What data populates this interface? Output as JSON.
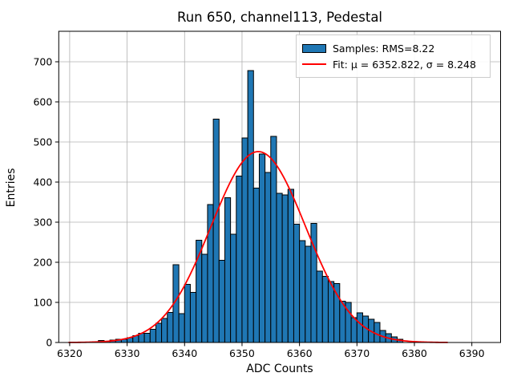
{
  "figure": {
    "title": "Run 650, channel113, Pedestal"
  },
  "chart_data": {
    "type": "bar",
    "subtype": "histogram-with-gaussian-fit",
    "title": "Run 650, channel113, Pedestal",
    "xlabel": "ADC Counts",
    "ylabel": "Entries",
    "xlim": [
      6318.1,
      6395.0
    ],
    "ylim": [
      0,
      776
    ],
    "x_ticks": [
      6320,
      6330,
      6340,
      6350,
      6360,
      6370,
      6380,
      6390
    ],
    "y_ticks": [
      0,
      100,
      200,
      300,
      400,
      500,
      600,
      700
    ],
    "grid": true,
    "bin_width": 1,
    "bin_left_edges": [
      6324,
      6325,
      6326,
      6327,
      6328,
      6329,
      6330,
      6331,
      6332,
      6333,
      6334,
      6335,
      6336,
      6337,
      6338,
      6339,
      6340,
      6341,
      6342,
      6343,
      6344,
      6345,
      6346,
      6347,
      6348,
      6349,
      6350,
      6351,
      6352,
      6353,
      6354,
      6355,
      6356,
      6357,
      6358,
      6359,
      6360,
      6361,
      6362,
      6363,
      6364,
      6365,
      6366,
      6367,
      6368,
      6369,
      6370,
      6371,
      6372,
      6373,
      6374,
      6375,
      6376,
      6377
    ],
    "counts": [
      2,
      5,
      3,
      6,
      8,
      8,
      12,
      17,
      23,
      23,
      33,
      48,
      60,
      75,
      194,
      72,
      145,
      125,
      255,
      220,
      344,
      557,
      205,
      361,
      270,
      415,
      510,
      678,
      385,
      470,
      424,
      514,
      372,
      368,
      382,
      295,
      254,
      240,
      297,
      178,
      165,
      152,
      147,
      103,
      100,
      62,
      74,
      66,
      58,
      50,
      30,
      22,
      14,
      8
    ],
    "fit": {
      "mu": 6352.822,
      "sigma": 8.248,
      "amplitude": 476,
      "x_min": 6319.8,
      "x_max": 6385.8
    },
    "legend": {
      "position": "upper right",
      "entries": [
        {
          "swatch": "bar",
          "label": "Samples: RMS=8.22"
        },
        {
          "swatch": "line",
          "label": "Fit: μ = 6352.822, σ = 8.248"
        }
      ]
    },
    "colors": {
      "bar_fill": "#1f77b4",
      "bar_edge": "#000000",
      "fit_line": "#ff0000",
      "grid": "#b0b0b0",
      "spine": "#000000",
      "legend_border": "#cccccc"
    }
  }
}
